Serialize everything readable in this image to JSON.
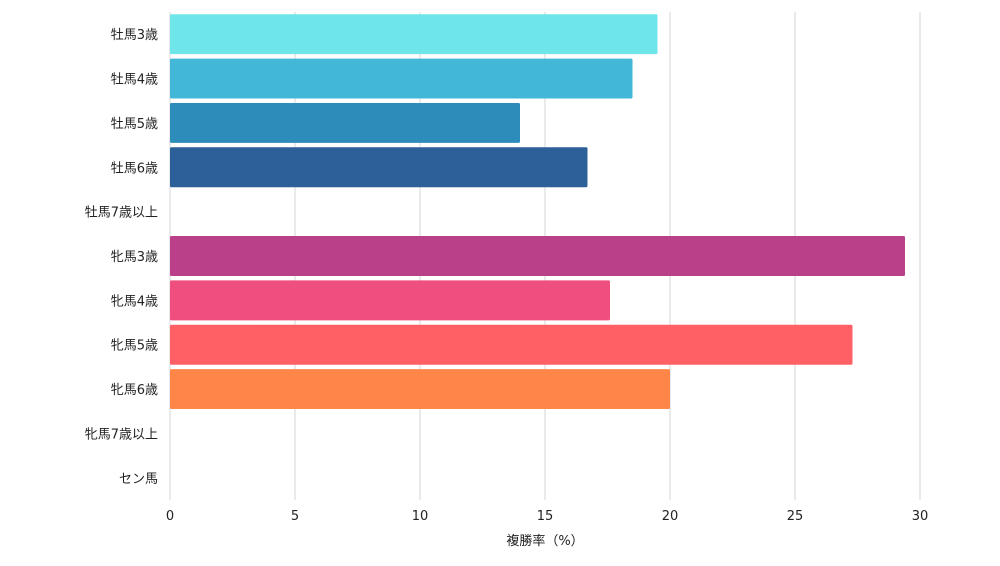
{
  "chart_data": {
    "type": "bar",
    "orientation": "horizontal",
    "categories": [
      "牡馬3歳",
      "牡馬4歳",
      "牡馬5歳",
      "牡馬6歳",
      "牡馬7歳以上",
      "牝馬3歳",
      "牝馬4歳",
      "牝馬5歳",
      "牝馬6歳",
      "牝馬7歳以上",
      "セン馬"
    ],
    "values": [
      19.5,
      18.5,
      14.0,
      16.7,
      0,
      29.4,
      17.6,
      27.3,
      20.0,
      0,
      0
    ],
    "colors": [
      "#6ee6e9",
      "#42b7d7",
      "#2e8cba",
      "#2d5f98",
      "#2d5f98",
      "#ba4089",
      "#ef4f7f",
      "#ff6066",
      "#ff8548",
      "#ff8548",
      "#ff8548"
    ],
    "xlabel": "複勝率（%）",
    "ylabel": "",
    "title": "",
    "xlim": [
      0,
      30
    ],
    "xticks": [
      0,
      5,
      10,
      15,
      20,
      25,
      30
    ],
    "grid": "vertical",
    "legend": "none"
  }
}
